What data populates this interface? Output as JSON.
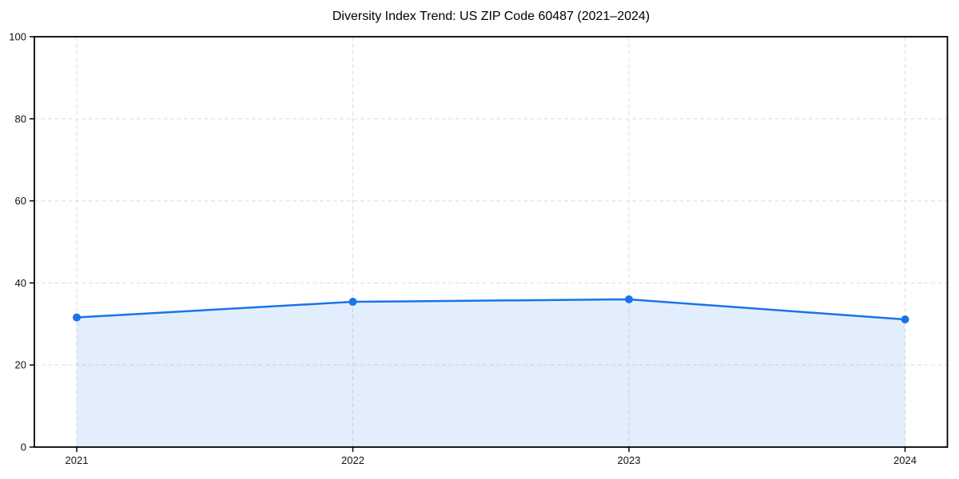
{
  "chart_data": {
    "type": "area",
    "title": "Diversity Index Trend: US ZIP Code 60487 (2021–2024)",
    "xlabel": "",
    "ylabel": "",
    "categories": [
      "2021",
      "2022",
      "2023",
      "2024"
    ],
    "x": [
      2021,
      2022,
      2023,
      2024
    ],
    "series": [
      {
        "name": "Diversity Index",
        "values": [
          31.6,
          35.4,
          36.0,
          31.1
        ]
      }
    ],
    "xticks": [
      "2021",
      "2022",
      "2023",
      "2024"
    ],
    "yticks": [
      0,
      20,
      40,
      60,
      80,
      100
    ],
    "ylim": [
      0,
      100
    ],
    "grid": true,
    "grid_style": "dashed",
    "legend": false,
    "legend_position": "none",
    "marker": "circle",
    "colors": {
      "line": "#1a73e8",
      "marker": "#1a73e8",
      "fill": "rgba(26,115,232,0.12)",
      "grid": "#e0e0e0",
      "axis": "#000000",
      "tick_label": "#111111",
      "background": "#ffffff"
    }
  }
}
